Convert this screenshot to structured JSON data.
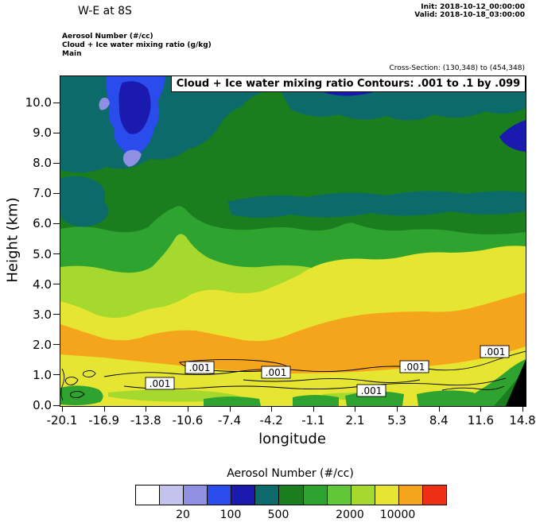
{
  "header": {
    "title": "W-E at 8S",
    "init_label": "Init: 2018-10-12_00:00:00",
    "valid_label": "Valid: 2018-10-18_03:00:00",
    "field_shaded": "Aerosol Number  (#/cc)",
    "field_contour": "Cloud + Ice water mixing ratio  (g/kg)",
    "grid_label": "Main",
    "cross_section": "Cross-Section: (130,348) to (454,348)"
  },
  "plot": {
    "overlay_title": "Cloud + Ice water mixing ratio Contours: .001 to .1 by .099",
    "contour_label": ".001",
    "yaxis": {
      "label": "Height (km)",
      "ticks": [
        "0.0",
        "1.0",
        "2.0",
        "3.0",
        "4.0",
        "5.0",
        "6.0",
        "7.0",
        "8.0",
        "9.0",
        "10.0"
      ]
    },
    "xaxis": {
      "label": "longitude",
      "ticks": [
        "-20.1",
        "-16.9",
        "-13.8",
        "-10.6",
        "-7.4",
        "-4.2",
        "-1.1",
        "2.1",
        "5.3",
        "8.4",
        "11.6",
        "14.8"
      ]
    }
  },
  "colorbar": {
    "title": "Aerosol Number  (#/cc)",
    "tick_labels": [
      "20",
      "100",
      "500",
      "2000",
      "10000"
    ],
    "colors": [
      "#ffffff",
      "#c3c3ee",
      "#9090e2",
      "#2a4cec",
      "#1a1aae",
      "#0d6a6a",
      "#1a7d1e",
      "#2fa32f",
      "#62c737",
      "#a6d92e",
      "#e6e632",
      "#f5a51c",
      "#ee2e15"
    ]
  },
  "chart_data": {
    "type": "heatmap",
    "subtype": "filled-contour vertical cross-section (W-E) with line-contour overlay",
    "title": "W-E at 8S",
    "init_time": "2018-10-12_00:00:00",
    "valid_time": "2018-10-18_03:00:00",
    "shaded_variable": "Aerosol Number (#/cc)",
    "contour_variable": "Cloud + Ice water mixing ratio (g/kg)",
    "contour_levels": {
      "start": 0.001,
      "end": 0.1,
      "interval": 0.099,
      "labeled_level": 0.001
    },
    "x": {
      "label": "longitude",
      "range": [
        -20.1,
        14.8
      ],
      "ticks": [
        -20.1,
        -16.9,
        -13.8,
        -10.6,
        -7.4,
        -4.2,
        -1.1,
        2.1,
        5.3,
        8.4,
        11.6,
        14.8
      ]
    },
    "y": {
      "label": "Height (km)",
      "range": [
        0,
        10.8
      ],
      "ticks": [
        0,
        1,
        2,
        3,
        4,
        5,
        6,
        7,
        8,
        9,
        10
      ]
    },
    "colorbar_tick_values": [
      20,
      100,
      500,
      2000,
      10000
    ],
    "legend_position": "bottom",
    "approx_field_by_height": [
      {
        "height_km": "0.0-1.3",
        "aerosol_per_cc": "2000-5000 (yellow) with 500-2000 green patches near the surface"
      },
      {
        "height_km": "1.3-3.2",
        "aerosol_per_cc": "5000-10000 (orange band spanning the whole section)"
      },
      {
        "height_km": "3.2-4.8",
        "aerosol_per_cc": "1000-5000 (yellow / yellow-green), band deeper on the eastern half"
      },
      {
        "height_km": "4.8-6.0",
        "aerosol_per_cc": "500-1000 (medium green)"
      },
      {
        "height_km": "6.0-10.8",
        "aerosol_per_cc": "100-500 (dark green with teal streaks)"
      },
      {
        "height_km": "8.0-10.8 near lon -17 to -13",
        "aerosol_per_cc": "20-100 (blue/navy plume, local minimum)"
      }
    ],
    "cloud_contour_note": "0.001 g/kg cloud+ice contour meanders along ~0.5-1.5 km height across the whole section; boxed '.001' labels near lon -13.8, -10.8, -4.4, 2.3, 5.6, 12.2",
    "terrain_note": "black terrain wedge in the bottom-right corner (lon ~13.5 to 14.8, up to ~1.5 km)"
  }
}
